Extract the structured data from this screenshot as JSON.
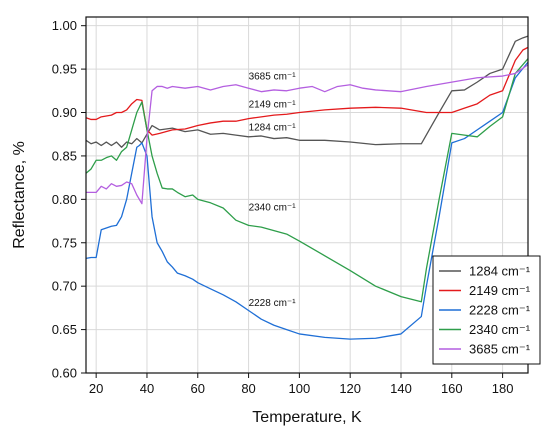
{
  "chart_data": {
    "type": "line",
    "xlabel": "Temperature, K",
    "ylabel": "Reflectance, %",
    "xlim": [
      16,
      190
    ],
    "ylim": [
      0.6,
      1.01
    ],
    "x_ticks": [
      20,
      40,
      60,
      80,
      100,
      120,
      140,
      160,
      180
    ],
    "y_ticks": [
      0.6,
      0.65,
      0.7,
      0.75,
      0.8,
      0.85,
      0.9,
      0.95,
      1.0
    ],
    "x_tick_labels": [
      "20",
      "40",
      "60",
      "80",
      "100",
      "120",
      "140",
      "160",
      "180"
    ],
    "y_tick_labels": [
      "0.60",
      "0.65",
      "0.70",
      "0.75",
      "0.80",
      "0.85",
      "0.90",
      "0.95",
      "1.00"
    ],
    "grid": true,
    "legend_position": "bottom-right",
    "colors": {
      "grid": "#d9d9d9",
      "axis": "#111111"
    },
    "series": [
      {
        "name": "1284 cm⁻¹",
        "color": "#555555",
        "x": [
          16,
          18,
          20,
          22,
          24,
          26,
          28,
          30,
          32,
          34,
          36,
          38,
          40,
          42,
          45,
          50,
          55,
          60,
          65,
          70,
          75,
          80,
          85,
          90,
          95,
          100,
          110,
          120,
          130,
          140,
          148,
          155,
          160,
          165,
          170,
          175,
          180,
          185,
          188,
          190
        ],
        "y": [
          0.868,
          0.864,
          0.866,
          0.862,
          0.866,
          0.862,
          0.866,
          0.86,
          0.866,
          0.864,
          0.87,
          0.865,
          0.875,
          0.885,
          0.88,
          0.882,
          0.878,
          0.88,
          0.875,
          0.876,
          0.874,
          0.872,
          0.873,
          0.87,
          0.871,
          0.868,
          0.868,
          0.866,
          0.863,
          0.864,
          0.864,
          0.9,
          0.925,
          0.926,
          0.935,
          0.945,
          0.95,
          0.982,
          0.986,
          0.988
        ]
      },
      {
        "name": "2149 cm⁻¹",
        "color": "#e41a1c",
        "x": [
          16,
          18,
          20,
          22,
          24,
          26,
          28,
          30,
          32,
          34,
          36,
          38,
          40,
          42,
          45,
          50,
          55,
          60,
          65,
          70,
          75,
          80,
          85,
          90,
          95,
          100,
          110,
          120,
          130,
          140,
          150,
          160,
          165,
          170,
          175,
          180,
          185,
          188,
          190
        ],
        "y": [
          0.894,
          0.892,
          0.892,
          0.895,
          0.896,
          0.897,
          0.9,
          0.9,
          0.903,
          0.91,
          0.915,
          0.914,
          0.88,
          0.874,
          0.876,
          0.88,
          0.881,
          0.885,
          0.888,
          0.89,
          0.89,
          0.893,
          0.895,
          0.897,
          0.898,
          0.9,
          0.903,
          0.905,
          0.906,
          0.905,
          0.9,
          0.9,
          0.905,
          0.91,
          0.92,
          0.925,
          0.96,
          0.972,
          0.975
        ]
      },
      {
        "name": "2228 cm⁻¹",
        "color": "#1f6fd6",
        "x": [
          16,
          18,
          20,
          22,
          24,
          26,
          28,
          30,
          32,
          34,
          36,
          37,
          38,
          40,
          42,
          44,
          46,
          48,
          50,
          52,
          55,
          58,
          60,
          65,
          70,
          75,
          80,
          85,
          90,
          95,
          100,
          110,
          120,
          130,
          140,
          148,
          150,
          155,
          160,
          165,
          170,
          175,
          180,
          185,
          190
        ],
        "y": [
          0.732,
          0.733,
          0.733,
          0.765,
          0.767,
          0.769,
          0.77,
          0.78,
          0.8,
          0.83,
          0.86,
          0.862,
          0.865,
          0.85,
          0.78,
          0.75,
          0.74,
          0.728,
          0.722,
          0.715,
          0.712,
          0.708,
          0.704,
          0.697,
          0.69,
          0.682,
          0.672,
          0.662,
          0.655,
          0.65,
          0.645,
          0.641,
          0.639,
          0.64,
          0.645,
          0.665,
          0.7,
          0.78,
          0.865,
          0.87,
          0.88,
          0.89,
          0.9,
          0.94,
          0.958
        ]
      },
      {
        "name": "2340 cm⁻¹",
        "color": "#2e9e4a",
        "x": [
          16,
          18,
          20,
          22,
          24,
          26,
          28,
          30,
          32,
          34,
          36,
          38,
          40,
          42,
          44,
          46,
          48,
          50,
          52,
          55,
          58,
          60,
          65,
          70,
          75,
          80,
          85,
          90,
          95,
          100,
          110,
          120,
          130,
          140,
          148,
          150,
          155,
          160,
          165,
          170,
          175,
          180,
          185,
          190
        ],
        "y": [
          0.83,
          0.835,
          0.845,
          0.845,
          0.848,
          0.85,
          0.845,
          0.855,
          0.86,
          0.88,
          0.9,
          0.912,
          0.88,
          0.85,
          0.83,
          0.813,
          0.812,
          0.812,
          0.808,
          0.803,
          0.805,
          0.8,
          0.796,
          0.79,
          0.776,
          0.77,
          0.768,
          0.764,
          0.76,
          0.752,
          0.735,
          0.718,
          0.7,
          0.688,
          0.682,
          0.72,
          0.8,
          0.876,
          0.874,
          0.872,
          0.884,
          0.895,
          0.945,
          0.962
        ]
      },
      {
        "name": "3685 cm⁻¹",
        "color": "#b45fe0",
        "x": [
          16,
          18,
          20,
          22,
          24,
          26,
          28,
          30,
          32,
          34,
          36,
          38,
          40,
          42,
          44,
          46,
          48,
          50,
          55,
          60,
          65,
          70,
          75,
          80,
          85,
          90,
          95,
          100,
          105,
          110,
          115,
          120,
          125,
          130,
          140,
          150,
          160,
          170,
          180,
          185,
          190
        ],
        "y": [
          0.808,
          0.808,
          0.808,
          0.815,
          0.812,
          0.818,
          0.815,
          0.816,
          0.82,
          0.818,
          0.805,
          0.795,
          0.87,
          0.925,
          0.93,
          0.93,
          0.928,
          0.93,
          0.928,
          0.93,
          0.926,
          0.93,
          0.932,
          0.928,
          0.924,
          0.926,
          0.925,
          0.928,
          0.93,
          0.924,
          0.93,
          0.932,
          0.928,
          0.926,
          0.924,
          0.93,
          0.935,
          0.94,
          0.942,
          0.945,
          0.955
        ]
      }
    ],
    "annotations": [
      {
        "text": "3685 cm⁻¹",
        "x": 80,
        "y": 0.938
      },
      {
        "text": "2149 cm⁻¹",
        "x": 80,
        "y": 0.906
      },
      {
        "text": "1284 cm⁻¹",
        "x": 80,
        "y": 0.879
      },
      {
        "text": "2340 cm⁻¹",
        "x": 80,
        "y": 0.787
      },
      {
        "text": "2228 cm⁻¹",
        "x": 80,
        "y": 0.677
      }
    ]
  }
}
